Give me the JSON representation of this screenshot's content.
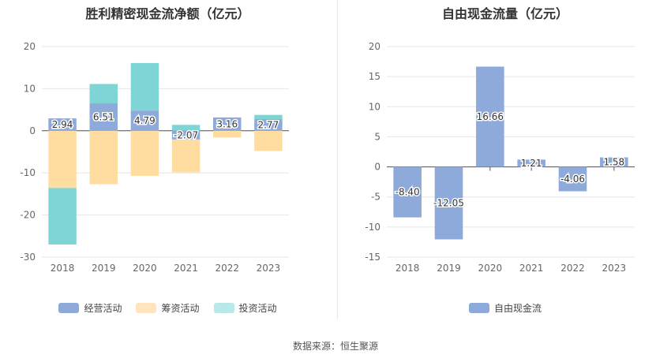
{
  "source_text": "数据来源：恒生聚源",
  "chart_data": [
    {
      "type": "bar",
      "stacked": true,
      "title": "胜利精密现金流净额（亿元）",
      "categories": [
        "2018",
        "2019",
        "2020",
        "2021",
        "2022",
        "2023"
      ],
      "ylim": [
        -30,
        20
      ],
      "yticks": [
        20,
        10,
        0,
        -10,
        -20,
        -30
      ],
      "grid": true,
      "legend_position": "bottom",
      "series": [
        {
          "name": "经营活动",
          "color": "#8eaadb",
          "values": [
            2.94,
            6.51,
            4.79,
            -2.07,
            3.16,
            2.77
          ],
          "labels": [
            "2.94",
            "6.51",
            "4.79",
            "-2.07",
            "3.16",
            "2.77"
          ]
        },
        {
          "name": "筹资活动",
          "color": "#ffdca0",
          "values": [
            -13.6,
            -12.7,
            -10.7,
            -7.8,
            -1.6,
            -4.8
          ]
        },
        {
          "name": "投资活动",
          "color": "#7fd5d5",
          "values": [
            -13.4,
            4.6,
            11.3,
            1.4,
            0.0,
            1.0
          ]
        }
      ]
    },
    {
      "type": "bar",
      "title": "自由现金流量（亿元）",
      "categories": [
        "2018",
        "2019",
        "2020",
        "2021",
        "2022",
        "2023"
      ],
      "ylim": [
        -15,
        20
      ],
      "yticks": [
        20,
        15,
        10,
        5,
        0,
        -5,
        -10,
        -15
      ],
      "grid": true,
      "legend_position": "bottom",
      "series": [
        {
          "name": "自由现金流",
          "color": "#8eaadb",
          "values": [
            -8.4,
            -12.05,
            16.66,
            1.21,
            -4.06,
            1.58
          ],
          "labels": [
            "-8.40",
            "-12.05",
            "16.66",
            "1.21",
            "-4.06",
            "1.58"
          ]
        }
      ]
    }
  ]
}
